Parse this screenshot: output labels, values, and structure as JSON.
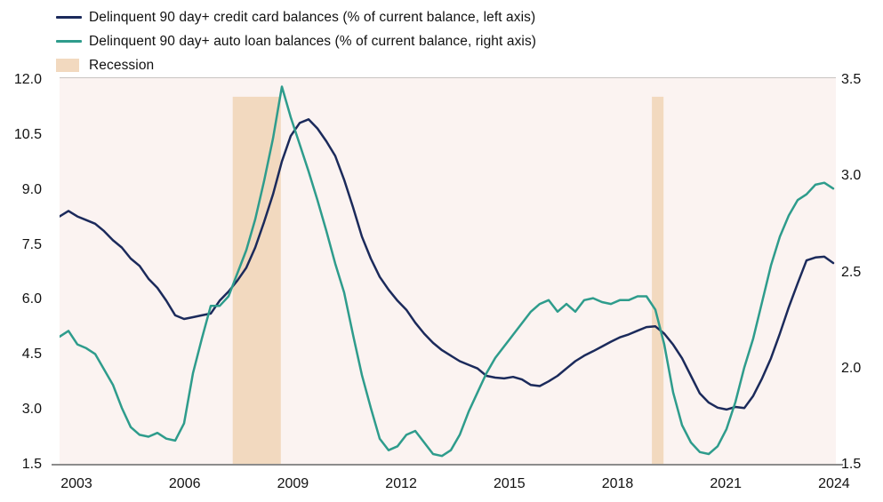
{
  "colors": {
    "credit_card_line": "#1b2a5b",
    "auto_loan_line": "#2e9c8c",
    "recession_band": "#f2d9bf",
    "plot_background": "#fbf3f1",
    "axis_line": "#8c8c8c",
    "text": "#111111"
  },
  "legend": {
    "items": [
      {
        "label": "Delinquent 90 day+ credit card balances (% of current balance, left axis)",
        "swatch": "line",
        "color": "#1b2a5b"
      },
      {
        "label": "Delinquent 90 day+ auto loan balances (% of current balance, right axis)",
        "swatch": "line",
        "color": "#2e9c8c"
      },
      {
        "label": "Recession",
        "swatch": "rect",
        "color": "#f2d9bf"
      }
    ]
  },
  "chart_data": {
    "type": "line",
    "x_unit": "quarterly",
    "x_start_year": 2003,
    "x_end_year": 2024.75,
    "x_tick_labels": [
      "2003",
      "2006",
      "2009",
      "2012",
      "2015",
      "2018",
      "2021",
      "2024"
    ],
    "left_axis": {
      "min": 1.5,
      "max": 12.0,
      "ticks": [
        "12.0",
        "10.5",
        "9.0",
        "7.5",
        "6.0",
        "4.5",
        "3.0",
        "1.5"
      ]
    },
    "right_axis": {
      "min": 1.5,
      "max": 3.5,
      "ticks": [
        "3.5",
        "3.0",
        "2.5",
        "2.0",
        "1.5"
      ]
    },
    "grid": false,
    "legend_position": "top-left",
    "recession_bands": [
      {
        "x_frac_start": 0.223,
        "x_frac_end": 0.285
      },
      {
        "x_frac_start": 0.763,
        "x_frac_end": 0.778
      }
    ],
    "band_top_frac": 0.048,
    "series": [
      {
        "name": "Delinquent 90 day+ credit card balances (% of current balance, left axis)",
        "axis": "left",
        "color": "#1b2a5b",
        "values": [
          8.3,
          8.45,
          8.3,
          8.2,
          8.1,
          7.9,
          7.65,
          7.45,
          7.15,
          6.95,
          6.6,
          6.35,
          6.0,
          5.6,
          5.5,
          5.55,
          5.6,
          5.65,
          6.0,
          6.25,
          6.55,
          6.9,
          7.45,
          8.15,
          8.9,
          9.8,
          10.5,
          10.85,
          10.95,
          10.7,
          10.35,
          9.95,
          9.3,
          8.55,
          7.75,
          7.15,
          6.65,
          6.3,
          6.0,
          5.75,
          5.4,
          5.1,
          4.85,
          4.65,
          4.5,
          4.35,
          4.25,
          4.15,
          3.95,
          3.9,
          3.88,
          3.92,
          3.85,
          3.7,
          3.67,
          3.8,
          3.95,
          4.15,
          4.35,
          4.5,
          4.62,
          4.75,
          4.88,
          5.0,
          5.08,
          5.18,
          5.28,
          5.3,
          5.1,
          4.8,
          4.43,
          3.95,
          3.47,
          3.22,
          3.08,
          3.03,
          3.1,
          3.07,
          3.4,
          3.88,
          4.43,
          5.1,
          5.82,
          6.47,
          7.1,
          7.18,
          7.2,
          7.03
        ]
      },
      {
        "name": "Delinquent 90 day+ auto loan balances (% of current balance, right axis)",
        "axis": "right",
        "color": "#2e9c8c",
        "values": [
          2.17,
          2.2,
          2.13,
          2.11,
          2.08,
          2.0,
          1.92,
          1.8,
          1.7,
          1.66,
          1.65,
          1.67,
          1.64,
          1.63,
          1.72,
          1.98,
          2.16,
          2.33,
          2.33,
          2.38,
          2.5,
          2.62,
          2.78,
          2.98,
          3.2,
          3.47,
          3.31,
          3.17,
          3.03,
          2.88,
          2.72,
          2.55,
          2.4,
          2.18,
          1.97,
          1.8,
          1.64,
          1.58,
          1.6,
          1.66,
          1.68,
          1.62,
          1.56,
          1.55,
          1.58,
          1.66,
          1.78,
          1.88,
          1.98,
          2.06,
          2.12,
          2.18,
          2.24,
          2.3,
          2.34,
          2.36,
          2.3,
          2.34,
          2.3,
          2.36,
          2.37,
          2.35,
          2.34,
          2.36,
          2.36,
          2.38,
          2.38,
          2.31,
          2.13,
          1.88,
          1.71,
          1.62,
          1.57,
          1.56,
          1.6,
          1.69,
          1.83,
          2.01,
          2.16,
          2.35,
          2.54,
          2.69,
          2.8,
          2.88,
          2.91,
          2.96,
          2.97,
          2.94
        ]
      }
    ]
  }
}
